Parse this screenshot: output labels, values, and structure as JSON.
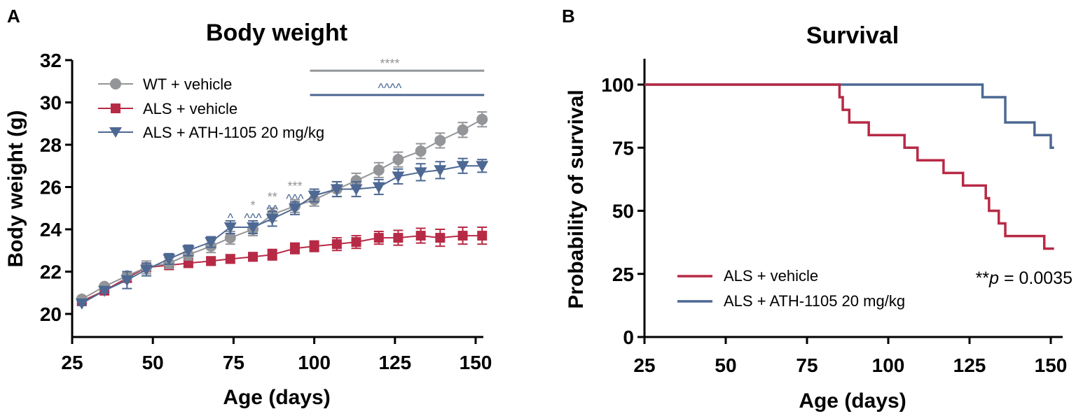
{
  "chart_data": [
    {
      "type": "line",
      "panel_label": "A",
      "title": "Body weight",
      "xlabel": "Age (days)",
      "ylabel": "Body weight (g)",
      "xlim": [
        25,
        153
      ],
      "ylim": [
        19,
        32
      ],
      "xticks": [
        "25",
        "50",
        "75",
        "100",
        "125",
        "150"
      ],
      "yticks": [
        "20",
        "22",
        "24",
        "26",
        "28",
        "30",
        "32"
      ],
      "x": [
        28,
        35,
        42,
        48,
        55,
        61,
        68,
        74,
        81,
        87,
        94,
        100,
        107,
        113,
        120,
        126,
        133,
        139,
        146,
        152
      ],
      "series": [
        {
          "name": "WT + vehicle",
          "color": "#939598",
          "marker": "circle",
          "values": [
            20.7,
            21.3,
            21.8,
            22.2,
            22.4,
            22.8,
            23.2,
            23.6,
            24.0,
            24.7,
            25.1,
            25.4,
            25.9,
            26.3,
            26.8,
            27.3,
            27.7,
            28.2,
            28.7,
            29.2
          ],
          "errors": [
            0.12,
            0.12,
            0.2,
            0.3,
            0.25,
            0.25,
            0.3,
            0.3,
            0.3,
            0.3,
            0.3,
            0.3,
            0.35,
            0.35,
            0.35,
            0.35,
            0.35,
            0.35,
            0.35,
            0.35
          ]
        },
        {
          "name": "ALS + vehicle",
          "color": "#b72a45",
          "marker": "square",
          "values": [
            20.6,
            21.1,
            21.7,
            22.2,
            22.3,
            22.4,
            22.5,
            22.6,
            22.7,
            22.8,
            23.1,
            23.2,
            23.3,
            23.4,
            23.6,
            23.6,
            23.7,
            23.6,
            23.7,
            23.7
          ],
          "errors": [
            0.1,
            0.1,
            0.2,
            0.2,
            0.2,
            0.2,
            0.2,
            0.2,
            0.2,
            0.25,
            0.25,
            0.25,
            0.3,
            0.3,
            0.3,
            0.35,
            0.35,
            0.4,
            0.4,
            0.4
          ]
        },
        {
          "name": "ALS + ATH-1105 20 mg/kg",
          "color": "#4d6893",
          "marker": "triangle-down",
          "values": [
            20.5,
            21.1,
            21.6,
            22.1,
            22.6,
            23.0,
            23.4,
            24.1,
            24.1,
            24.5,
            25.0,
            25.6,
            25.9,
            25.9,
            26.0,
            26.5,
            26.7,
            26.8,
            27.0,
            27.0
          ],
          "errors": [
            0.1,
            0.1,
            0.4,
            0.3,
            0.25,
            0.25,
            0.25,
            0.3,
            0.3,
            0.35,
            0.3,
            0.3,
            0.35,
            0.35,
            0.35,
            0.35,
            0.4,
            0.4,
            0.35,
            0.3
          ]
        }
      ],
      "significance_bars": [
        {
          "label": "****",
          "color": "#939598",
          "x_from": 100,
          "x_to": 152,
          "y": 31.5
        },
        {
          "label": "^^^^",
          "color": "#4d6893",
          "x_from": 100,
          "x_to": 152,
          "y": 30.35
        }
      ],
      "annotations": [
        {
          "x": 74,
          "labels": [
            {
              "text": "^",
              "color": "#4d6893"
            }
          ]
        },
        {
          "x": 81,
          "labels": [
            {
              "text": "^^^",
              "color": "#4d6893"
            },
            {
              "text": "*",
              "color": "#939598"
            }
          ]
        },
        {
          "x": 87,
          "labels": [
            {
              "text": "^^",
              "color": "#4d6893"
            },
            {
              "text": "**",
              "color": "#939598"
            }
          ]
        },
        {
          "x": 94,
          "labels": [
            {
              "text": "^^^",
              "color": "#4d6893"
            },
            {
              "text": "***",
              "color": "#939598"
            }
          ]
        }
      ],
      "legend": "top-left"
    },
    {
      "type": "line",
      "panel_label": "B",
      "title": "Survival",
      "xlabel": "Age (days)",
      "ylabel": "Probability of survival",
      "xlim": [
        25,
        152
      ],
      "ylim": [
        0,
        110
      ],
      "xticks": [
        "25",
        "50",
        "75",
        "100",
        "125",
        "150"
      ],
      "yticks": [
        "0",
        "25",
        "50",
        "75",
        "100"
      ],
      "series": [
        {
          "name": "ALS + vehicle",
          "color": "#b72a45",
          "steps": [
            [
              25,
              100
            ],
            [
              85,
              95
            ],
            [
              86,
              90
            ],
            [
              88,
              85
            ],
            [
              94,
              80
            ],
            [
              105,
              75
            ],
            [
              109,
              70
            ],
            [
              117,
              65
            ],
            [
              123,
              60
            ],
            [
              130,
              55
            ],
            [
              131,
              50
            ],
            [
              134,
              45
            ],
            [
              136,
              40
            ],
            [
              148,
              35
            ],
            [
              151,
              35
            ]
          ]
        },
        {
          "name": "ALS + ATH-1105 20 mg/kg",
          "color": "#4d6893",
          "steps": [
            [
              25,
              100
            ],
            [
              129,
              95
            ],
            [
              136,
              85
            ],
            [
              145,
              80
            ],
            [
              150,
              75
            ],
            [
              151,
              75
            ]
          ]
        }
      ],
      "p_value": {
        "prefix": "**",
        "italic": "p",
        "suffix": " = 0.0035"
      },
      "legend": "bottom-center"
    }
  ]
}
